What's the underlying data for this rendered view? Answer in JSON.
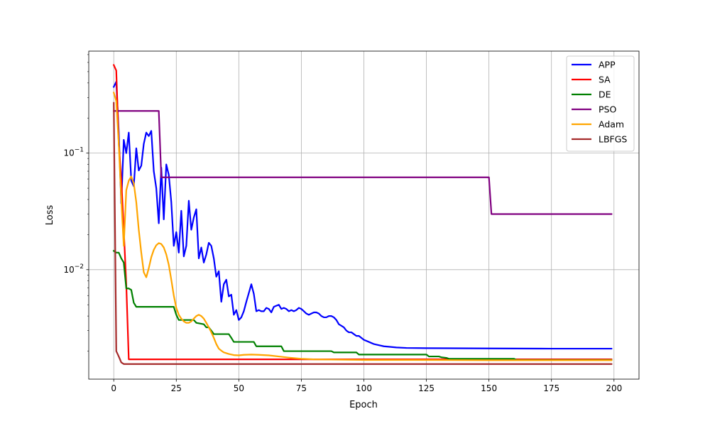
{
  "chart_data": {
    "type": "line",
    "title": "",
    "xlabel": "Epoch",
    "ylabel": "Loss",
    "xlim": [
      -10,
      210
    ],
    "ylim": [
      0.00115,
      0.75
    ],
    "yscale": "log",
    "grid": true,
    "legend_position": "top-right",
    "x_ticks": [
      0,
      25,
      50,
      75,
      100,
      125,
      150,
      175,
      200
    ],
    "x_tick_labels": [
      "0",
      "25",
      "50",
      "75",
      "100",
      "125",
      "150",
      "175",
      "200"
    ],
    "y_major_ticks": [
      0.01,
      0.1
    ],
    "y_tick_labels": [
      "10^-2",
      "10^-1"
    ],
    "series": [
      {
        "name": "APP",
        "color": "#0000ff",
        "points": [
          [
            0,
            0.37
          ],
          [
            1,
            0.41
          ],
          [
            2,
            0.15
          ],
          [
            3,
            0.037
          ],
          [
            4,
            0.13
          ],
          [
            5,
            0.1
          ],
          [
            6,
            0.15
          ],
          [
            7,
            0.058
          ],
          [
            8,
            0.052
          ],
          [
            9,
            0.11
          ],
          [
            10,
            0.071
          ],
          [
            11,
            0.078
          ],
          [
            12,
            0.12
          ],
          [
            13,
            0.15
          ],
          [
            14,
            0.14
          ],
          [
            15,
            0.155
          ],
          [
            16,
            0.07
          ],
          [
            17,
            0.05
          ],
          [
            18,
            0.025
          ],
          [
            19,
            0.075
          ],
          [
            20,
            0.027
          ],
          [
            21,
            0.08
          ],
          [
            22,
            0.065
          ],
          [
            23,
            0.038
          ],
          [
            24,
            0.016
          ],
          [
            25,
            0.021
          ],
          [
            26,
            0.014
          ],
          [
            27,
            0.032
          ],
          [
            28,
            0.013
          ],
          [
            29,
            0.016
          ],
          [
            30,
            0.039
          ],
          [
            31,
            0.022
          ],
          [
            32,
            0.028
          ],
          [
            33,
            0.033
          ],
          [
            34,
            0.0125
          ],
          [
            35,
            0.0155
          ],
          [
            36,
            0.0115
          ],
          [
            37,
            0.0135
          ],
          [
            38,
            0.017
          ],
          [
            39,
            0.016
          ],
          [
            40,
            0.0125
          ],
          [
            41,
            0.0087
          ],
          [
            42,
            0.0097
          ],
          [
            43,
            0.0053
          ],
          [
            44,
            0.0075
          ],
          [
            45,
            0.0082
          ],
          [
            46,
            0.0059
          ],
          [
            47,
            0.0061
          ],
          [
            48,
            0.0041
          ],
          [
            49,
            0.0045
          ],
          [
            50,
            0.0037
          ],
          [
            51,
            0.0039
          ],
          [
            52,
            0.0044
          ],
          [
            53,
            0.0053
          ],
          [
            54,
            0.0063
          ],
          [
            55,
            0.0075
          ],
          [
            56,
            0.0062
          ],
          [
            57,
            0.0044
          ],
          [
            58,
            0.0045
          ],
          [
            59,
            0.0044
          ],
          [
            60,
            0.0044
          ],
          [
            61,
            0.0047
          ],
          [
            62,
            0.0046
          ],
          [
            63,
            0.0043
          ],
          [
            64,
            0.0048
          ],
          [
            65,
            0.0049
          ],
          [
            66,
            0.005
          ],
          [
            67,
            0.0046
          ],
          [
            68,
            0.0047
          ],
          [
            69,
            0.0046
          ],
          [
            70,
            0.0044
          ],
          [
            71,
            0.0045
          ],
          [
            72,
            0.0044
          ],
          [
            73,
            0.0045
          ],
          [
            74,
            0.0047
          ],
          [
            75,
            0.0046
          ],
          [
            76,
            0.0044
          ],
          [
            77,
            0.0042
          ],
          [
            78,
            0.0041
          ],
          [
            79,
            0.0042
          ],
          [
            80,
            0.0043
          ],
          [
            81,
            0.0043
          ],
          [
            82,
            0.0042
          ],
          [
            83,
            0.004
          ],
          [
            84,
            0.0039
          ],
          [
            85,
            0.0039
          ],
          [
            86,
            0.004
          ],
          [
            87,
            0.004
          ],
          [
            88,
            0.0039
          ],
          [
            89,
            0.0037
          ],
          [
            90,
            0.0034
          ],
          [
            91,
            0.0033
          ],
          [
            92,
            0.0032
          ],
          [
            93,
            0.003
          ],
          [
            94,
            0.0029
          ],
          [
            95,
            0.0029
          ],
          [
            96,
            0.0028
          ],
          [
            97,
            0.0027
          ],
          [
            98,
            0.0027
          ],
          [
            99,
            0.0026
          ],
          [
            100,
            0.0025
          ],
          [
            102,
            0.0024
          ],
          [
            104,
            0.0023
          ],
          [
            106,
            0.00225
          ],
          [
            108,
            0.0022
          ],
          [
            110,
            0.00218
          ],
          [
            113,
            0.00215
          ],
          [
            117,
            0.00213
          ],
          [
            125,
            0.00212
          ],
          [
            150,
            0.00211
          ],
          [
            175,
            0.0021
          ],
          [
            199,
            0.0021
          ]
        ]
      },
      {
        "name": "SA",
        "color": "#ff0000",
        "points": [
          [
            0,
            0.57
          ],
          [
            1,
            0.51
          ],
          [
            2,
            0.12
          ],
          [
            3,
            0.06
          ],
          [
            4,
            0.022
          ],
          [
            5,
            0.0075
          ],
          [
            6,
            0.0017
          ],
          [
            199,
            0.0017
          ]
        ]
      },
      {
        "name": "DE",
        "color": "#008000",
        "points": [
          [
            0,
            0.0145
          ],
          [
            1,
            0.014
          ],
          [
            2,
            0.014
          ],
          [
            3,
            0.0125
          ],
          [
            4,
            0.0115
          ],
          [
            5,
            0.0069
          ],
          [
            6,
            0.0069
          ],
          [
            7,
            0.0067
          ],
          [
            8,
            0.0052
          ],
          [
            9,
            0.0048
          ],
          [
            24,
            0.0048
          ],
          [
            25,
            0.0041
          ],
          [
            26,
            0.0037
          ],
          [
            32,
            0.0037
          ],
          [
            33,
            0.0035
          ],
          [
            36,
            0.0034
          ],
          [
            37,
            0.0032
          ],
          [
            38,
            0.0032
          ],
          [
            39,
            0.003
          ],
          [
            40,
            0.0028
          ],
          [
            46,
            0.0028
          ],
          [
            47,
            0.0026
          ],
          [
            48,
            0.0024
          ],
          [
            56,
            0.0024
          ],
          [
            57,
            0.0022
          ],
          [
            67,
            0.0022
          ],
          [
            68,
            0.002
          ],
          [
            87,
            0.002
          ],
          [
            88,
            0.00195
          ],
          [
            97,
            0.00195
          ],
          [
            98,
            0.00187
          ],
          [
            125,
            0.00187
          ],
          [
            126,
            0.0018
          ],
          [
            130,
            0.0018
          ],
          [
            131,
            0.00177
          ],
          [
            133,
            0.00175
          ],
          [
            134,
            0.00172
          ],
          [
            160,
            0.00172
          ],
          [
            161,
            0.00168
          ],
          [
            199,
            0.00168
          ]
        ]
      },
      {
        "name": "PSO",
        "color": "#800080",
        "points": [
          [
            0,
            0.23
          ],
          [
            18,
            0.23
          ],
          [
            19,
            0.062
          ],
          [
            150,
            0.062
          ],
          [
            151,
            0.03
          ],
          [
            199,
            0.03
          ]
        ]
      },
      {
        "name": "Adam",
        "color": "#ffa500",
        "points": [
          [
            0,
            0.33
          ],
          [
            1,
            0.28
          ],
          [
            2,
            0.12
          ],
          [
            3,
            0.04
          ],
          [
            4,
            0.016
          ],
          [
            5,
            0.048
          ],
          [
            6,
            0.058
          ],
          [
            7,
            0.063
          ],
          [
            8,
            0.055
          ],
          [
            9,
            0.038
          ],
          [
            10,
            0.022
          ],
          [
            11,
            0.014
          ],
          [
            12,
            0.0095
          ],
          [
            13,
            0.0086
          ],
          [
            14,
            0.0103
          ],
          [
            15,
            0.0128
          ],
          [
            16,
            0.0148
          ],
          [
            17,
            0.0162
          ],
          [
            18,
            0.0169
          ],
          [
            19,
            0.0166
          ],
          [
            20,
            0.0155
          ],
          [
            21,
            0.0135
          ],
          [
            22,
            0.011
          ],
          [
            23,
            0.0082
          ],
          [
            24,
            0.006
          ],
          [
            25,
            0.0047
          ],
          [
            26,
            0.0041
          ],
          [
            27,
            0.0038
          ],
          [
            28,
            0.0036
          ],
          [
            29,
            0.0035
          ],
          [
            30,
            0.0035
          ],
          [
            31,
            0.0036
          ],
          [
            32,
            0.0038
          ],
          [
            33,
            0.004
          ],
          [
            34,
            0.0041
          ],
          [
            35,
            0.004
          ],
          [
            36,
            0.0038
          ],
          [
            37,
            0.0035
          ],
          [
            38,
            0.0032
          ],
          [
            39,
            0.0029
          ],
          [
            40,
            0.0026
          ],
          [
            41,
            0.0023
          ],
          [
            42,
            0.0021
          ],
          [
            43,
            0.00202
          ],
          [
            44,
            0.00195
          ],
          [
            45,
            0.00192
          ],
          [
            46,
            0.00189
          ],
          [
            47,
            0.00187
          ],
          [
            48,
            0.00185
          ],
          [
            50,
            0.00184
          ],
          [
            52,
            0.00186
          ],
          [
            55,
            0.00187
          ],
          [
            58,
            0.00186
          ],
          [
            62,
            0.00184
          ],
          [
            66,
            0.0018
          ],
          [
            70,
            0.00176
          ],
          [
            75,
            0.00172
          ],
          [
            80,
            0.0017
          ],
          [
            90,
            0.00169
          ],
          [
            100,
            0.00168
          ],
          [
            120,
            0.00168
          ],
          [
            150,
            0.00167
          ],
          [
            199,
            0.00167
          ]
        ]
      },
      {
        "name": "LBFGS",
        "color": "#a52a2a",
        "points": [
          [
            0,
            0.27
          ],
          [
            1,
            0.002
          ],
          [
            2,
            0.0018
          ],
          [
            3,
            0.0016
          ],
          [
            4,
            0.00155
          ],
          [
            10,
            0.00155
          ],
          [
            199,
            0.00155
          ]
        ]
      }
    ]
  }
}
